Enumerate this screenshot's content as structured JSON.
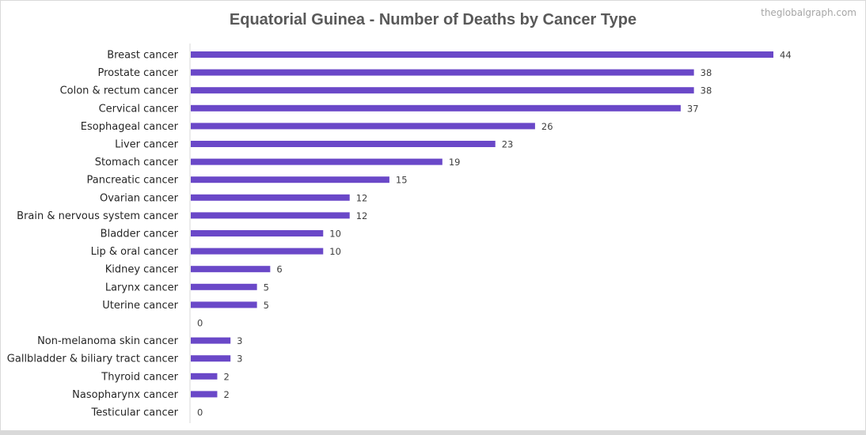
{
  "title": "Equatorial Guinea - Number of Deaths by Cancer Type",
  "watermark": "theglobalgraph.com",
  "colors": {
    "bar": "#6a48c8",
    "axis": "#d9d9d9",
    "label": "#262626",
    "value": "#404040",
    "title": "#595959"
  },
  "chart_data": {
    "type": "bar",
    "orientation": "horizontal",
    "title": "Equatorial Guinea - Number of Deaths by Cancer Type",
    "xlabel": "",
    "ylabel": "",
    "xlim": [
      0,
      44
    ],
    "grid": false,
    "categories": [
      "Breast cancer",
      "Prostate cancer",
      "Colon & rectum cancer",
      "Cervical cancer",
      "Esophageal cancer",
      "Liver cancer",
      "Stomach cancer",
      "Pancreatic cancer",
      "Ovarian cancer",
      "Brain & nervous system cancer",
      "Bladder cancer",
      "Lip & oral cancer",
      "Kidney cancer",
      "Larynx cancer",
      "Uterine cancer",
      "",
      "Non-melanoma skin cancer",
      "Gallbladder & biliary tract cancer",
      "Thyroid cancer",
      "Nasopharynx cancer",
      "Testicular cancer"
    ],
    "values": [
      44,
      38,
      38,
      37,
      26,
      23,
      19,
      15,
      12,
      12,
      10,
      10,
      6,
      5,
      5,
      0,
      3,
      3,
      2,
      2,
      0
    ]
  }
}
